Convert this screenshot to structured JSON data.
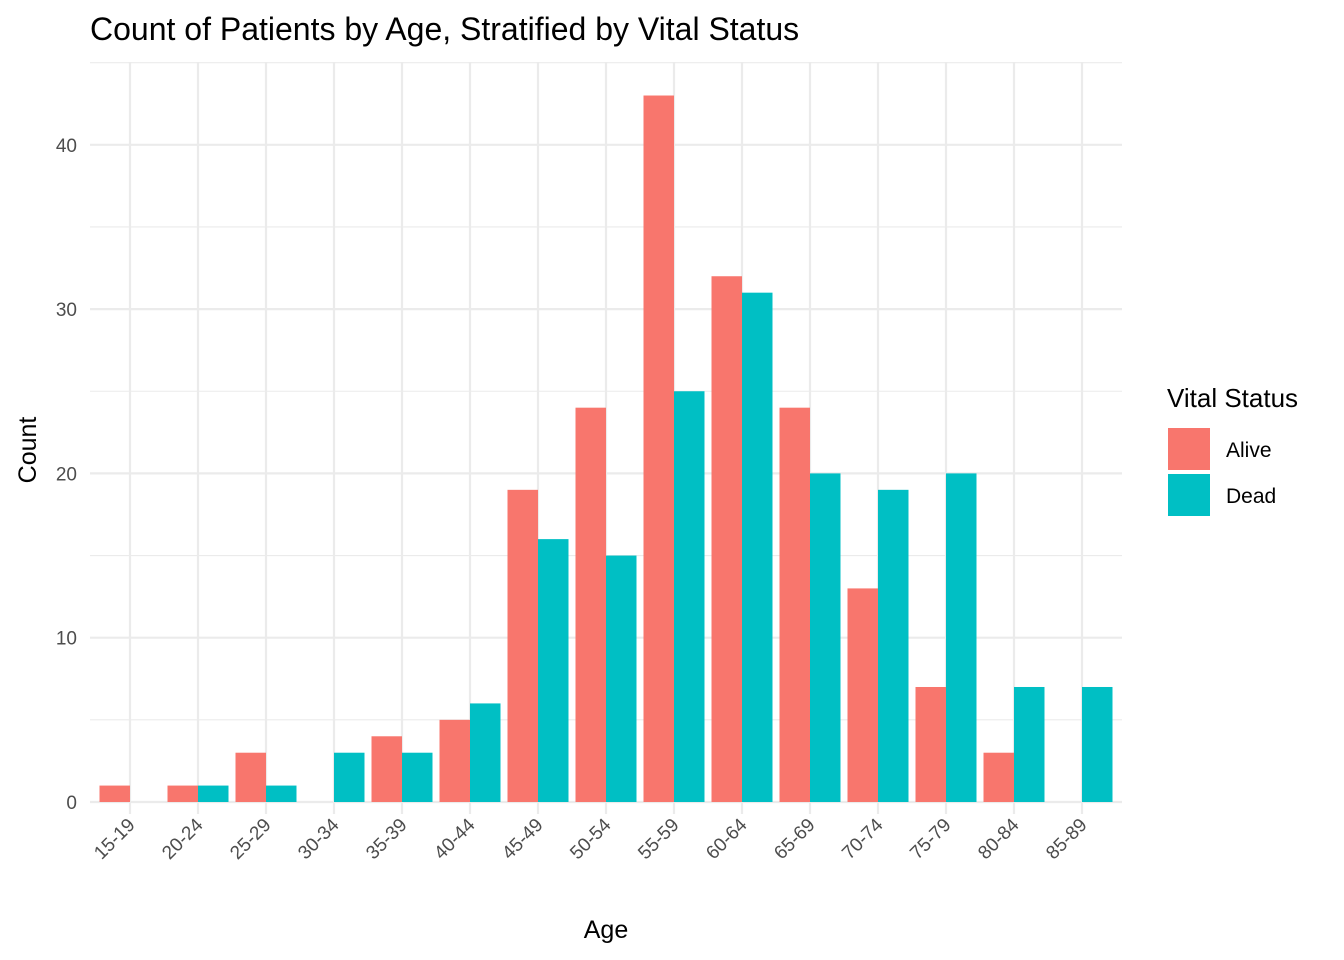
{
  "chart_data": {
    "type": "bar",
    "title": "Count of Patients by Age, Stratified by Vital Status",
    "xlabel": "Age",
    "ylabel": "Count",
    "categories": [
      "15-19",
      "20-24",
      "25-29",
      "30-34",
      "35-39",
      "40-44",
      "45-49",
      "50-54",
      "55-59",
      "60-64",
      "65-69",
      "70-74",
      "75-79",
      "80-84",
      "85-89"
    ],
    "series": [
      {
        "name": "Alive",
        "color": "#F8766D",
        "values": [
          1,
          1,
          3,
          null,
          4,
          5,
          19,
          24,
          43,
          32,
          24,
          13,
          7,
          3,
          null
        ]
      },
      {
        "name": "Dead",
        "color": "#00BFC4",
        "values": [
          null,
          1,
          1,
          3,
          3,
          6,
          16,
          15,
          25,
          31,
          20,
          19,
          20,
          7,
          7
        ]
      }
    ],
    "ylim": [
      0,
      45
    ],
    "yticks": [
      0,
      10,
      20,
      30,
      40
    ],
    "grid": true,
    "legend": {
      "title": "Vital Status",
      "position": "right"
    }
  }
}
